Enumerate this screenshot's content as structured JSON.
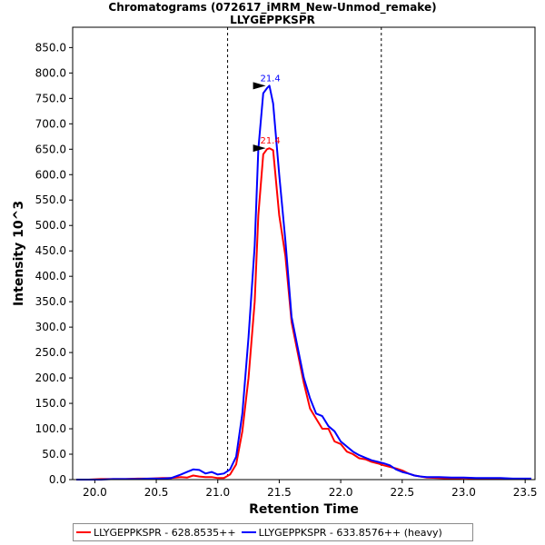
{
  "chart_data": {
    "type": "line",
    "title": "Chromatograms (072617_iMRM_New-Unmod_remake)",
    "subtitle": "LLYGEPPKSPR",
    "xlabel": "Retention Time",
    "ylabel": "Intensity 10^3",
    "xlim": [
      19.82,
      23.58
    ],
    "ylim": [
      0,
      890
    ],
    "x_ticks": [
      "20.0",
      "20.5",
      "21.0",
      "21.5",
      "22.0",
      "22.5",
      "23.0",
      "23.5"
    ],
    "y_ticks": [
      "0.0",
      "50.0",
      "100.0",
      "150.0",
      "200.0",
      "250.0",
      "300.0",
      "350.0",
      "400.0",
      "450.0",
      "500.0",
      "550.0",
      "600.0",
      "650.0",
      "700.0",
      "750.0",
      "800.0",
      "850.0"
    ],
    "integration_bounds": [
      21.08,
      22.33
    ],
    "series": [
      {
        "name": "LLYGEPPKSPR - 628.8535++",
        "color": "#ff0000",
        "peak_label": "21.4",
        "peak": [
          21.42,
          652
        ],
        "points": [
          [
            19.85,
            0
          ],
          [
            19.95,
            0
          ],
          [
            20.05,
            1
          ],
          [
            20.15,
            1
          ],
          [
            20.25,
            1
          ],
          [
            20.35,
            2
          ],
          [
            20.45,
            2
          ],
          [
            20.55,
            3
          ],
          [
            20.62,
            3
          ],
          [
            20.7,
            5
          ],
          [
            20.75,
            4
          ],
          [
            20.8,
            8
          ],
          [
            20.85,
            6
          ],
          [
            20.9,
            5
          ],
          [
            20.95,
            5
          ],
          [
            21.0,
            3
          ],
          [
            21.05,
            3
          ],
          [
            21.1,
            10
          ],
          [
            21.15,
            30
          ],
          [
            21.2,
            95
          ],
          [
            21.25,
            200
          ],
          [
            21.3,
            350
          ],
          [
            21.33,
            520
          ],
          [
            21.37,
            640
          ],
          [
            21.4,
            650
          ],
          [
            21.42,
            652
          ],
          [
            21.45,
            648
          ],
          [
            21.5,
            520
          ],
          [
            21.55,
            440
          ],
          [
            21.6,
            310
          ],
          [
            21.65,
            250
          ],
          [
            21.7,
            190
          ],
          [
            21.75,
            140
          ],
          [
            21.8,
            120
          ],
          [
            21.85,
            100
          ],
          [
            21.9,
            100
          ],
          [
            21.95,
            75
          ],
          [
            22.0,
            70
          ],
          [
            22.05,
            55
          ],
          [
            22.1,
            50
          ],
          [
            22.15,
            42
          ],
          [
            22.2,
            40
          ],
          [
            22.25,
            35
          ],
          [
            22.3,
            32
          ],
          [
            22.35,
            28
          ],
          [
            22.4,
            25
          ],
          [
            22.45,
            22
          ],
          [
            22.5,
            18
          ],
          [
            22.55,
            12
          ],
          [
            22.6,
            8
          ],
          [
            22.65,
            6
          ],
          [
            22.7,
            4
          ],
          [
            22.8,
            3
          ],
          [
            22.9,
            2
          ],
          [
            23.0,
            3
          ],
          [
            23.1,
            2
          ],
          [
            23.2,
            2
          ],
          [
            23.3,
            2
          ],
          [
            23.4,
            1
          ],
          [
            23.5,
            1
          ],
          [
            23.55,
            1
          ]
        ]
      },
      {
        "name": "LLYGEPPKSPR - 633.8576++ (heavy)",
        "color": "#0000ff",
        "peak_label": "21.4",
        "peak": [
          21.42,
          775
        ],
        "points": [
          [
            19.85,
            0
          ],
          [
            19.95,
            0
          ],
          [
            20.05,
            0
          ],
          [
            20.15,
            1
          ],
          [
            20.25,
            1
          ],
          [
            20.35,
            1
          ],
          [
            20.45,
            2
          ],
          [
            20.55,
            2
          ],
          [
            20.62,
            3
          ],
          [
            20.7,
            10
          ],
          [
            20.75,
            15
          ],
          [
            20.8,
            20
          ],
          [
            20.85,
            19
          ],
          [
            20.9,
            12
          ],
          [
            20.95,
            15
          ],
          [
            21.0,
            10
          ],
          [
            21.05,
            12
          ],
          [
            21.1,
            20
          ],
          [
            21.15,
            45
          ],
          [
            21.2,
            130
          ],
          [
            21.25,
            280
          ],
          [
            21.3,
            460
          ],
          [
            21.33,
            650
          ],
          [
            21.37,
            760
          ],
          [
            21.4,
            770
          ],
          [
            21.42,
            775
          ],
          [
            21.45,
            740
          ],
          [
            21.5,
            600
          ],
          [
            21.55,
            470
          ],
          [
            21.6,
            320
          ],
          [
            21.65,
            260
          ],
          [
            21.7,
            200
          ],
          [
            21.75,
            160
          ],
          [
            21.8,
            130
          ],
          [
            21.85,
            125
          ],
          [
            21.9,
            105
          ],
          [
            21.95,
            95
          ],
          [
            22.0,
            75
          ],
          [
            22.05,
            65
          ],
          [
            22.1,
            55
          ],
          [
            22.15,
            48
          ],
          [
            22.2,
            43
          ],
          [
            22.25,
            38
          ],
          [
            22.3,
            35
          ],
          [
            22.35,
            32
          ],
          [
            22.4,
            28
          ],
          [
            22.45,
            20
          ],
          [
            22.5,
            15
          ],
          [
            22.55,
            12
          ],
          [
            22.6,
            8
          ],
          [
            22.65,
            6
          ],
          [
            22.7,
            5
          ],
          [
            22.8,
            5
          ],
          [
            22.9,
            4
          ],
          [
            23.0,
            4
          ],
          [
            23.1,
            3
          ],
          [
            23.2,
            3
          ],
          [
            23.3,
            3
          ],
          [
            23.4,
            2
          ],
          [
            23.5,
            2
          ],
          [
            23.55,
            2
          ]
        ]
      }
    ]
  }
}
